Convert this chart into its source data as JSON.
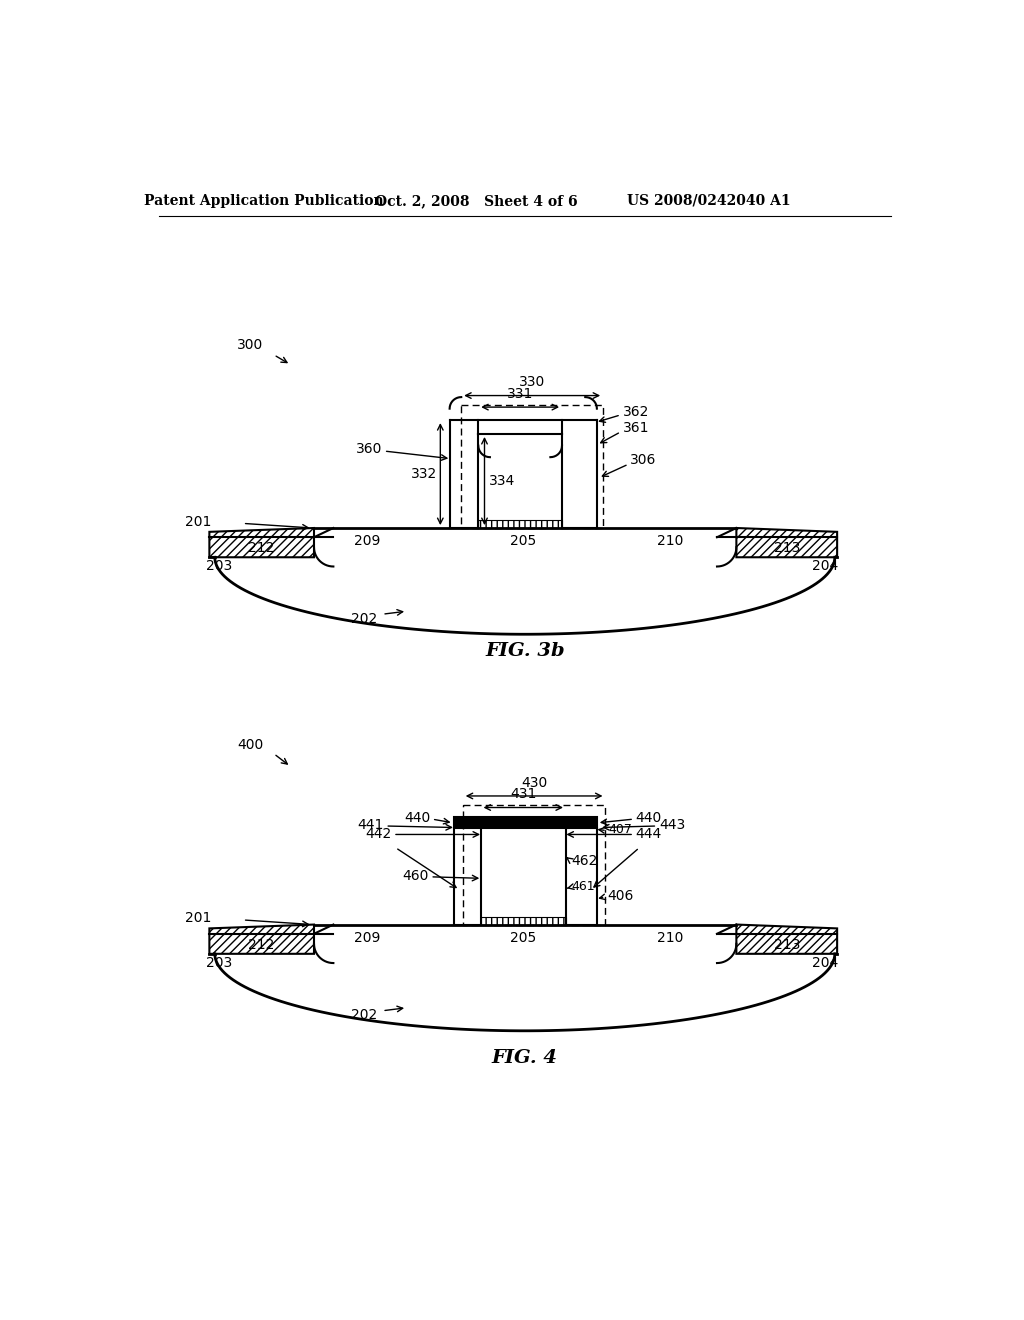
{
  "header_left": "Patent Application Publication",
  "header_mid": "Oct. 2, 2008   Sheet 4 of 6",
  "header_right": "US 2008/0242040 A1",
  "fig3b_label": "FIG. 3b",
  "fig4_label": "FIG. 4",
  "background": "#ffffff"
}
